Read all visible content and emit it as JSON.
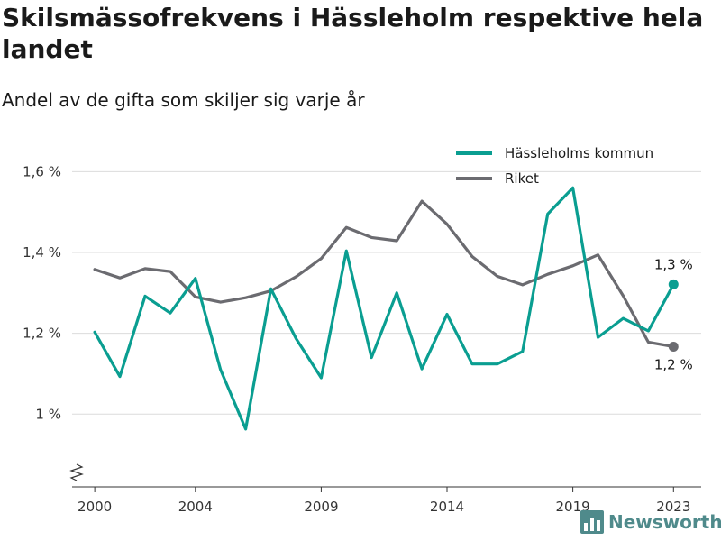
{
  "title": "Skilsmässofrekvens i Hässleholm respektive hela landet",
  "subtitle": "Andel av de gifta som skiljer sig varje år",
  "brand": {
    "name": "Newsworthy",
    "icon": "bar-chart-logo-icon"
  },
  "chart_data": {
    "type": "line",
    "x": [
      2000,
      2001,
      2002,
      2003,
      2004,
      2005,
      2006,
      2007,
      2008,
      2009,
      2010,
      2011,
      2012,
      2013,
      2014,
      2015,
      2016,
      2017,
      2018,
      2019,
      2020,
      2021,
      2022,
      2023
    ],
    "series": [
      {
        "name": "Hässleholms kommun",
        "color": "#0a9e91",
        "values": [
          1.203,
          1.093,
          1.292,
          1.25,
          1.336,
          1.11,
          0.963,
          1.31,
          1.187,
          1.09,
          1.404,
          1.14,
          1.3,
          1.112,
          1.247,
          1.124,
          1.124,
          1.155,
          1.495,
          1.56,
          1.19,
          1.237,
          1.206,
          1.321
        ],
        "end_label": "1,3 %"
      },
      {
        "name": "Riket",
        "color": "#6b6b70",
        "values": [
          1.358,
          1.337,
          1.36,
          1.353,
          1.29,
          1.277,
          1.288,
          1.305,
          1.34,
          1.385,
          1.462,
          1.437,
          1.429,
          1.527,
          1.47,
          1.39,
          1.341,
          1.32,
          1.346,
          1.367,
          1.394,
          1.293,
          1.178,
          1.167
        ],
        "end_label": "1,2 %"
      }
    ],
    "x_ticks": [
      2000,
      2004,
      2009,
      2014,
      2019,
      2023
    ],
    "x_tick_labels": [
      "2000",
      "2004",
      "2009",
      "2014",
      "2019",
      "2023"
    ],
    "y_ticks": [
      1.0,
      1.2,
      1.4,
      1.6
    ],
    "y_tick_labels": [
      "1 %",
      "1,2 %",
      "1,4 %",
      "1,6 %"
    ],
    "ylim": [
      0.82,
      1.69
    ],
    "xlim": [
      1999.1,
      2024.1
    ],
    "grid": true,
    "legend_position": "top-right",
    "y_axis_break": true
  }
}
